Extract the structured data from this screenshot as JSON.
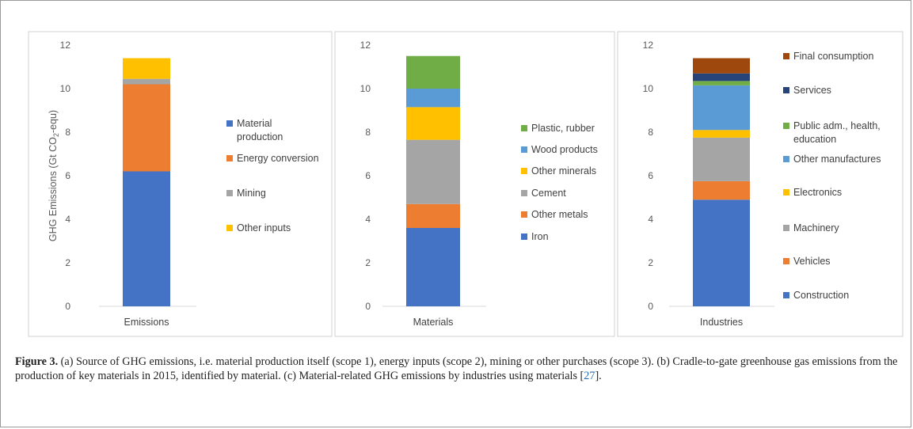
{
  "colors": {
    "material_production": "#4472c4",
    "energy_conversion": "#ed7d31",
    "mining": "#a5a5a5",
    "other_inputs": "#ffc000",
    "plastic_rubber": "#70ad47",
    "wood_products": "#5b9bd5",
    "services": "#264478",
    "final_consumption": "#9e480e"
  },
  "chart_data": [
    {
      "type": "bar",
      "stacked": true,
      "categories": [
        "Emissions"
      ],
      "ylabel": "GHG Emissions (Gt CO2-equ)",
      "ylim": [
        0,
        12
      ],
      "yticks": [
        "0",
        "2",
        "4",
        "6",
        "8",
        "10",
        "12"
      ],
      "grid": false,
      "legend_position": "right",
      "series": [
        {
          "name": "Material production",
          "values": [
            6.2
          ],
          "color": "#4472c4"
        },
        {
          "name": "Energy conversion",
          "values": [
            4.0
          ],
          "color": "#ed7d31"
        },
        {
          "name": "Mining",
          "values": [
            0.25
          ],
          "color": "#a5a5a5"
        },
        {
          "name": "Other inputs",
          "values": [
            0.95
          ],
          "color": "#ffc000"
        }
      ]
    },
    {
      "type": "bar",
      "stacked": true,
      "categories": [
        "Materials"
      ],
      "ylim": [
        0,
        12
      ],
      "yticks": [
        "0",
        "2",
        "4",
        "6",
        "8",
        "10",
        "12"
      ],
      "grid": false,
      "legend_position": "right",
      "series": [
        {
          "name": "Iron",
          "values": [
            3.6
          ],
          "color": "#4472c4"
        },
        {
          "name": "Other metals",
          "values": [
            1.1
          ],
          "color": "#ed7d31"
        },
        {
          "name": "Cement",
          "values": [
            2.95
          ],
          "color": "#a5a5a5"
        },
        {
          "name": "Other minerals",
          "values": [
            1.5
          ],
          "color": "#ffc000"
        },
        {
          "name": "Wood products",
          "values": [
            0.85
          ],
          "color": "#5b9bd5"
        },
        {
          "name": "Plastic, rubber",
          "values": [
            1.5
          ],
          "color": "#70ad47"
        }
      ]
    },
    {
      "type": "bar",
      "stacked": true,
      "categories": [
        "Industries"
      ],
      "ylim": [
        0,
        12
      ],
      "yticks": [
        "0",
        "2",
        "4",
        "6",
        "8",
        "10",
        "12"
      ],
      "grid": false,
      "legend_position": "right",
      "series": [
        {
          "name": "Construction",
          "values": [
            4.9
          ],
          "color": "#4472c4"
        },
        {
          "name": "Vehicles",
          "values": [
            0.85
          ],
          "color": "#ed7d31"
        },
        {
          "name": "Machinery",
          "values": [
            2.0
          ],
          "color": "#a5a5a5"
        },
        {
          "name": "Electronics",
          "values": [
            0.35
          ],
          "color": "#ffc000"
        },
        {
          "name": "Other manufactures",
          "values": [
            2.05
          ],
          "color": "#5b9bd5"
        },
        {
          "name": "Public adm., health, education",
          "values": [
            0.2
          ],
          "color": "#70ad47"
        },
        {
          "name": "Services",
          "values": [
            0.35
          ],
          "color": "#264478"
        },
        {
          "name": "Final consumption",
          "values": [
            0.7
          ],
          "color": "#9e480e"
        }
      ]
    }
  ],
  "caption": {
    "label": "Figure 3.",
    "text_before_ref": " (a) Source of GHG emissions, i.e. material production itself (scope 1), energy inputs (scope 2), mining or other purchases (scope 3). (b) Cradle-to-gate greenhouse gas emissions from the production of key materials in 2015, identified by material. (c) Material-related GHG emissions by industries using materials [",
    "ref": "27",
    "text_after_ref": "]."
  }
}
